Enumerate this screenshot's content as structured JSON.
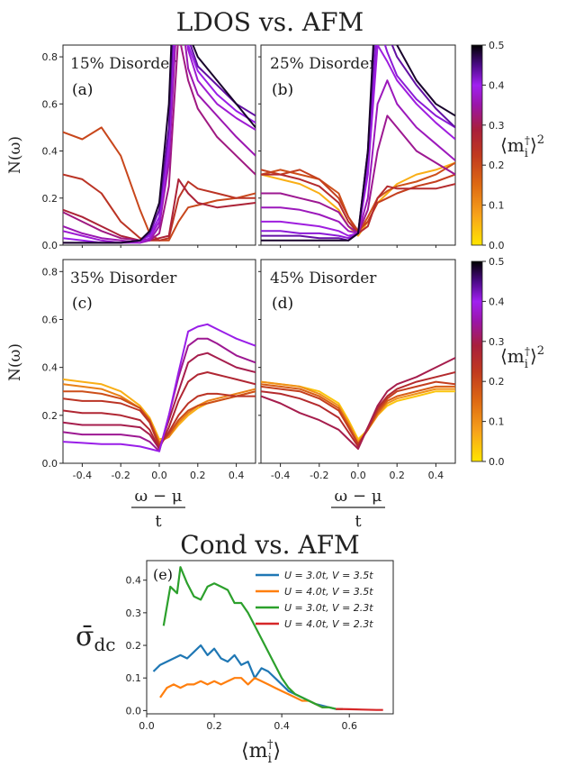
{
  "top_title": "LDOS vs. AFM",
  "bottom_title": "Cond vs. AFM",
  "ylabel_ldos": "N(ω)",
  "xlabel_num": "ω − μ",
  "xlabel_den": "t",
  "colorbar_label": "⟨m_i^†⟩²",
  "colors": {
    "colormap": [
      "#ffe500",
      "#f7a21b",
      "#de6a13",
      "#c0391f",
      "#a81f3c",
      "#9a16a8",
      "#a020f0",
      "#4b0a86",
      "#000000"
    ],
    "cond_series": [
      "#1f77b4",
      "#ff7f0e",
      "#2ca02c",
      "#d62728"
    ]
  },
  "colorbar_ticks": [
    "0.0",
    "0.1",
    "0.2",
    "0.3",
    "0.4",
    "0.5"
  ],
  "chart_data": [
    {
      "type": "line",
      "panel_label": "(a)",
      "title": "15% Disorder",
      "ylabel": "N(ω)",
      "xlim": [
        -0.5,
        0.5
      ],
      "ylim": [
        0,
        0.85
      ],
      "yticks": [
        "0.0",
        "0.2",
        "0.4",
        "0.6",
        "0.8"
      ],
      "x": [
        -0.5,
        -0.4,
        -0.3,
        -0.2,
        -0.1,
        -0.05,
        0.0,
        0.05,
        0.1,
        0.15,
        0.2,
        0.3,
        0.4,
        0.5
      ],
      "series": [
        {
          "m": 0.48,
          "values": [
            0.01,
            0.01,
            0.01,
            0.01,
            0.02,
            0.06,
            0.18,
            0.6,
            1.6,
            0.9,
            0.8,
            0.7,
            0.6,
            0.5
          ]
        },
        {
          "m": 0.42,
          "values": [
            0.01,
            0.01,
            0.01,
            0.01,
            0.02,
            0.05,
            0.15,
            0.5,
            1.5,
            0.88,
            0.76,
            0.68,
            0.6,
            0.55
          ]
        },
        {
          "m": 0.38,
          "values": [
            0.03,
            0.02,
            0.01,
            0.01,
            0.02,
            0.04,
            0.12,
            0.45,
            1.4,
            0.85,
            0.74,
            0.64,
            0.57,
            0.52
          ]
        },
        {
          "m": 0.35,
          "values": [
            0.06,
            0.04,
            0.02,
            0.01,
            0.01,
            0.03,
            0.1,
            0.4,
            1.3,
            0.83,
            0.7,
            0.6,
            0.54,
            0.49
          ]
        },
        {
          "m": 0.32,
          "values": [
            0.08,
            0.05,
            0.03,
            0.02,
            0.01,
            0.02,
            0.08,
            0.35,
            1.1,
            0.75,
            0.64,
            0.55,
            0.46,
            0.38
          ]
        },
        {
          "m": 0.29,
          "values": [
            0.14,
            0.1,
            0.06,
            0.03,
            0.02,
            0.02,
            0.05,
            0.25,
            0.9,
            0.7,
            0.58,
            0.46,
            0.38,
            0.3
          ]
        },
        {
          "m": 0.2,
          "values": [
            0.3,
            0.28,
            0.22,
            0.1,
            0.03,
            0.02,
            0.02,
            0.03,
            0.2,
            0.27,
            0.24,
            0.22,
            0.2,
            0.2
          ]
        },
        {
          "m": 0.17,
          "values": [
            0.48,
            0.45,
            0.5,
            0.38,
            0.15,
            0.05,
            0.02,
            0.02,
            0.1,
            0.16,
            0.17,
            0.19,
            0.2,
            0.22
          ]
        },
        {
          "m": 0.24,
          "values": [
            0.15,
            0.12,
            0.08,
            0.04,
            0.02,
            0.02,
            0.03,
            0.04,
            0.28,
            0.22,
            0.18,
            0.16,
            0.17,
            0.18
          ]
        }
      ]
    },
    {
      "type": "line",
      "panel_label": "(b)",
      "title": "25% Disorder",
      "xlim": [
        -0.5,
        0.5
      ],
      "ylim": [
        0,
        0.85
      ],
      "x": [
        -0.5,
        -0.4,
        -0.3,
        -0.2,
        -0.1,
        -0.05,
        0.0,
        0.05,
        0.1,
        0.15,
        0.2,
        0.3,
        0.4,
        0.5
      ],
      "series": [
        {
          "m": 0.48,
          "values": [
            0.02,
            0.02,
            0.02,
            0.02,
            0.02,
            0.02,
            0.05,
            0.4,
            1.2,
            0.95,
            0.85,
            0.7,
            0.6,
            0.55
          ]
        },
        {
          "m": 0.42,
          "values": [
            0.04,
            0.04,
            0.04,
            0.03,
            0.03,
            0.02,
            0.05,
            0.4,
            1.1,
            0.9,
            0.8,
            0.68,
            0.58,
            0.5
          ]
        },
        {
          "m": 0.39,
          "values": [
            0.06,
            0.06,
            0.05,
            0.05,
            0.04,
            0.03,
            0.05,
            0.35,
            0.95,
            0.82,
            0.72,
            0.62,
            0.55,
            0.5
          ]
        },
        {
          "m": 0.36,
          "values": [
            0.1,
            0.1,
            0.09,
            0.08,
            0.06,
            0.04,
            0.05,
            0.3,
            0.85,
            0.78,
            0.7,
            0.6,
            0.52,
            0.45
          ]
        },
        {
          "m": 0.33,
          "values": [
            0.16,
            0.16,
            0.15,
            0.13,
            0.1,
            0.06,
            0.05,
            0.2,
            0.6,
            0.7,
            0.6,
            0.5,
            0.43,
            0.36
          ]
        },
        {
          "m": 0.3,
          "values": [
            0.22,
            0.22,
            0.2,
            0.18,
            0.14,
            0.08,
            0.05,
            0.15,
            0.4,
            0.55,
            0.5,
            0.4,
            0.35,
            0.3
          ]
        },
        {
          "m": 0.22,
          "values": [
            0.3,
            0.3,
            0.28,
            0.25,
            0.18,
            0.1,
            0.05,
            0.08,
            0.2,
            0.25,
            0.24,
            0.24,
            0.24,
            0.26
          ]
        },
        {
          "m": 0.18,
          "values": [
            0.32,
            0.3,
            0.32,
            0.28,
            0.2,
            0.12,
            0.06,
            0.1,
            0.18,
            0.2,
            0.22,
            0.25,
            0.27,
            0.3
          ]
        },
        {
          "m": 0.05,
          "values": [
            0.3,
            0.28,
            0.26,
            0.22,
            0.15,
            0.08,
            0.04,
            0.1,
            0.18,
            0.22,
            0.26,
            0.3,
            0.32,
            0.35
          ]
        },
        {
          "m": 0.16,
          "values": [
            0.3,
            0.32,
            0.3,
            0.28,
            0.22,
            0.12,
            0.05,
            0.12,
            0.2,
            0.23,
            0.25,
            0.27,
            0.3,
            0.35
          ]
        }
      ]
    },
    {
      "type": "line",
      "panel_label": "(c)",
      "title": "35% Disorder",
      "ylabel": "N(ω)",
      "xlim": [
        -0.5,
        0.5
      ],
      "ylim": [
        0,
        0.85
      ],
      "yticks": [
        "0.0",
        "0.2",
        "0.4",
        "0.6",
        "0.8"
      ],
      "xticks": [
        "-0.4",
        "-0.2",
        "0.0",
        "0.2",
        "0.4"
      ],
      "x": [
        -0.5,
        -0.4,
        -0.3,
        -0.2,
        -0.1,
        -0.05,
        0.0,
        0.05,
        0.1,
        0.15,
        0.2,
        0.25,
        0.3,
        0.4,
        0.5
      ],
      "series": [
        {
          "m": 0.38,
          "values": [
            0.09,
            0.085,
            0.08,
            0.08,
            0.07,
            0.06,
            0.05,
            0.2,
            0.38,
            0.55,
            0.57,
            0.58,
            0.56,
            0.52,
            0.49
          ]
        },
        {
          "m": 0.3,
          "values": [
            0.13,
            0.12,
            0.12,
            0.12,
            0.11,
            0.09,
            0.05,
            0.2,
            0.36,
            0.49,
            0.52,
            0.52,
            0.5,
            0.45,
            0.42
          ]
        },
        {
          "m": 0.26,
          "values": [
            0.17,
            0.16,
            0.16,
            0.16,
            0.15,
            0.12,
            0.06,
            0.18,
            0.3,
            0.42,
            0.45,
            0.46,
            0.44,
            0.4,
            0.38
          ]
        },
        {
          "m": 0.23,
          "values": [
            0.22,
            0.21,
            0.21,
            0.2,
            0.18,
            0.14,
            0.06,
            0.15,
            0.26,
            0.34,
            0.37,
            0.38,
            0.37,
            0.35,
            0.33
          ]
        },
        {
          "m": 0.2,
          "values": [
            0.27,
            0.26,
            0.26,
            0.25,
            0.22,
            0.17,
            0.07,
            0.13,
            0.2,
            0.25,
            0.28,
            0.29,
            0.29,
            0.28,
            0.28
          ]
        },
        {
          "m": 0.16,
          "values": [
            0.3,
            0.3,
            0.29,
            0.27,
            0.23,
            0.18,
            0.08,
            0.12,
            0.18,
            0.22,
            0.24,
            0.25,
            0.26,
            0.28,
            0.3
          ]
        },
        {
          "m": 0.1,
          "values": [
            0.33,
            0.32,
            0.31,
            0.28,
            0.23,
            0.18,
            0.09,
            0.11,
            0.17,
            0.21,
            0.24,
            0.26,
            0.27,
            0.29,
            0.31
          ]
        },
        {
          "m": 0.05,
          "values": [
            0.35,
            0.34,
            0.33,
            0.3,
            0.24,
            0.19,
            0.1,
            0.11,
            0.16,
            0.2,
            0.23,
            0.25,
            0.26,
            0.28,
            0.3
          ]
        }
      ]
    },
    {
      "type": "line",
      "panel_label": "(d)",
      "title": "45% Disorder",
      "xlim": [
        -0.5,
        0.5
      ],
      "ylim": [
        0,
        0.85
      ],
      "xticks": [
        "-0.4",
        "-0.2",
        "0.0",
        "0.2",
        "0.4"
      ],
      "x": [
        -0.5,
        -0.4,
        -0.3,
        -0.2,
        -0.1,
        -0.05,
        0.0,
        0.05,
        0.1,
        0.15,
        0.2,
        0.3,
        0.4,
        0.5
      ],
      "series": [
        {
          "m": 0.26,
          "values": [
            0.28,
            0.25,
            0.21,
            0.18,
            0.14,
            0.1,
            0.06,
            0.15,
            0.24,
            0.3,
            0.33,
            0.36,
            0.4,
            0.44
          ]
        },
        {
          "m": 0.22,
          "values": [
            0.3,
            0.29,
            0.27,
            0.24,
            0.19,
            0.13,
            0.07,
            0.15,
            0.23,
            0.28,
            0.31,
            0.34,
            0.36,
            0.38
          ]
        },
        {
          "m": 0.18,
          "values": [
            0.32,
            0.31,
            0.3,
            0.27,
            0.22,
            0.15,
            0.08,
            0.14,
            0.22,
            0.27,
            0.3,
            0.32,
            0.34,
            0.33
          ]
        },
        {
          "m": 0.14,
          "values": [
            0.33,
            0.32,
            0.31,
            0.28,
            0.23,
            0.16,
            0.08,
            0.14,
            0.21,
            0.26,
            0.28,
            0.3,
            0.32,
            0.32
          ]
        },
        {
          "m": 0.08,
          "values": [
            0.34,
            0.33,
            0.32,
            0.29,
            0.24,
            0.17,
            0.09,
            0.14,
            0.2,
            0.25,
            0.27,
            0.29,
            0.31,
            0.31
          ]
        },
        {
          "m": 0.03,
          "values": [
            0.34,
            0.33,
            0.32,
            0.3,
            0.25,
            0.18,
            0.1,
            0.14,
            0.2,
            0.24,
            0.26,
            0.28,
            0.3,
            0.3
          ]
        }
      ]
    },
    {
      "type": "line",
      "panel_label": "(e)",
      "title": "Cond vs. AFM",
      "ylabel": "σ̄dc",
      "xlabel": "⟨m_i^†⟩",
      "xlim": [
        0.0,
        0.73
      ],
      "ylim": [
        -0.01,
        0.46
      ],
      "xticks": [
        "0.0",
        "0.2",
        "0.4",
        "0.6"
      ],
      "yticks": [
        "0.0",
        "0.1",
        "0.2",
        "0.3",
        "0.4"
      ],
      "legend_placement": "top-right",
      "series": [
        {
          "name": "U = 3.0t, V = 3.5t",
          "x": [
            0.02,
            0.04,
            0.06,
            0.08,
            0.1,
            0.12,
            0.14,
            0.16,
            0.18,
            0.2,
            0.22,
            0.24,
            0.26,
            0.28,
            0.3,
            0.32,
            0.34,
            0.36,
            0.38,
            0.4,
            0.42,
            0.44,
            0.46,
            0.48,
            0.5,
            0.52,
            0.54,
            0.56,
            0.58
          ],
          "values": [
            0.12,
            0.14,
            0.15,
            0.16,
            0.17,
            0.16,
            0.18,
            0.2,
            0.17,
            0.19,
            0.16,
            0.15,
            0.17,
            0.14,
            0.15,
            0.1,
            0.13,
            0.12,
            0.1,
            0.08,
            0.06,
            0.05,
            0.04,
            0.03,
            0.02,
            0.015,
            0.01,
            0.005,
            0.005
          ]
        },
        {
          "name": "U = 4.0t, V = 3.5t",
          "x": [
            0.04,
            0.06,
            0.08,
            0.1,
            0.12,
            0.14,
            0.16,
            0.18,
            0.2,
            0.22,
            0.24,
            0.26,
            0.28,
            0.3,
            0.32,
            0.34,
            0.36,
            0.38,
            0.4,
            0.42,
            0.44,
            0.46,
            0.48,
            0.5,
            0.52,
            0.54
          ],
          "values": [
            0.04,
            0.07,
            0.08,
            0.07,
            0.08,
            0.08,
            0.09,
            0.08,
            0.09,
            0.08,
            0.09,
            0.1,
            0.1,
            0.08,
            0.1,
            0.09,
            0.08,
            0.07,
            0.06,
            0.05,
            0.04,
            0.03,
            0.03,
            0.02,
            0.01,
            0.01
          ]
        },
        {
          "name": "U = 3.0t, V = 2.3t",
          "x": [
            0.05,
            0.07,
            0.09,
            0.1,
            0.12,
            0.14,
            0.16,
            0.18,
            0.2,
            0.22,
            0.24,
            0.26,
            0.28,
            0.3,
            0.32,
            0.34,
            0.36,
            0.38,
            0.4,
            0.42,
            0.44,
            0.46,
            0.48,
            0.5,
            0.52,
            0.54,
            0.56,
            0.58
          ],
          "values": [
            0.26,
            0.38,
            0.36,
            0.44,
            0.39,
            0.35,
            0.34,
            0.38,
            0.39,
            0.38,
            0.37,
            0.33,
            0.33,
            0.3,
            0.26,
            0.22,
            0.18,
            0.14,
            0.1,
            0.07,
            0.05,
            0.04,
            0.03,
            0.02,
            0.01,
            0.01,
            0.005,
            0.005
          ]
        },
        {
          "name": "U = 4.0t, V = 2.3t",
          "x": [
            0.56,
            0.6,
            0.64,
            0.68,
            0.7
          ],
          "values": [
            0.005,
            0.004,
            0.003,
            0.002,
            0.002
          ]
        }
      ]
    }
  ]
}
